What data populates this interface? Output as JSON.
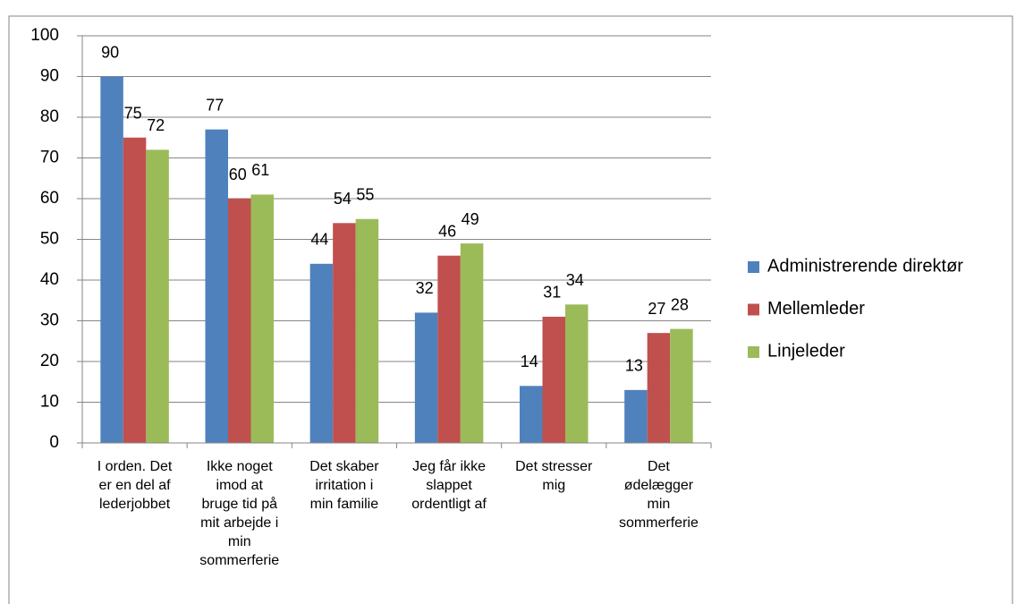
{
  "chart_data": {
    "type": "bar",
    "categories": [
      "I orden. Det\ner en del af\nlederjobbet",
      "Ikke noget\nimod at\nbruge tid på\nmit arbejde i\nmin\nsommerferie",
      "Det skaber\nirritation i\nmin familie",
      "Jeg får ikke\nslappet\nordentligt af",
      "Det stresser\nmig",
      "Det\nødelægger\nmin\nsommerferie"
    ],
    "series": [
      {
        "name": "Administrerende direktør",
        "color": "#4f81bd",
        "values": [
          90,
          77,
          44,
          32,
          14,
          13
        ]
      },
      {
        "name": "Mellemleder",
        "color": "#c0504d",
        "values": [
          75,
          60,
          54,
          46,
          31,
          27
        ]
      },
      {
        "name": "Linjeleder",
        "color": "#9bbb59",
        "values": [
          72,
          61,
          55,
          49,
          34,
          28
        ]
      }
    ],
    "ylim": [
      0,
      100
    ],
    "yticks": [
      0,
      10,
      20,
      30,
      40,
      50,
      60,
      70,
      80,
      90,
      100
    ],
    "grid": true,
    "legend": "right"
  }
}
